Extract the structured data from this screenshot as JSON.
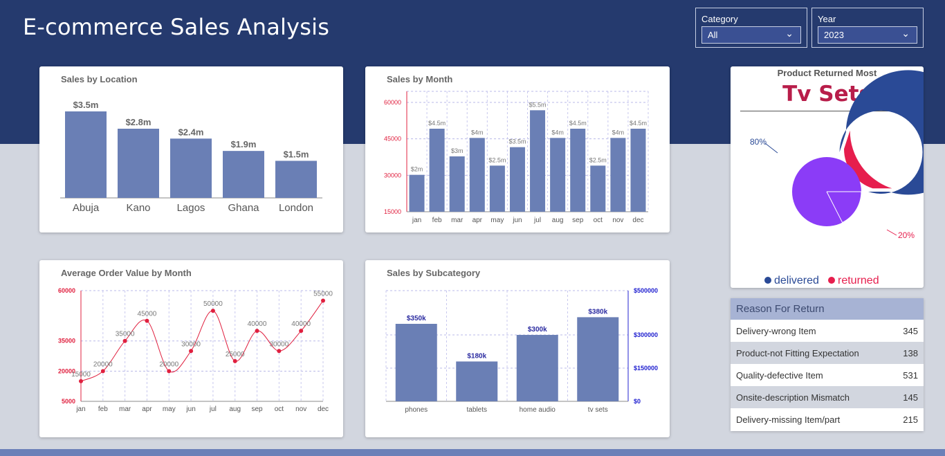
{
  "header": {
    "title": "E-commerce Sales Analysis"
  },
  "filters": [
    {
      "label": "Category",
      "value": "All"
    },
    {
      "label": "Year",
      "value": "2023"
    }
  ],
  "cards": {
    "location_title": "Sales by Location",
    "month_title": "Sales by Month",
    "aov_title": "Average Order Value by Month",
    "subcat_title": "Sales by Subcategory",
    "returned_title": "Product Returned Most",
    "returned_product": "Tv Sets",
    "reason_title": "Reason For Return"
  },
  "reasons": [
    {
      "reason": "Delivery-wrong Item",
      "count": "345"
    },
    {
      "reason": "Product-not Fitting Expectation",
      "count": "138"
    },
    {
      "reason": "Quality-defective Item",
      "count": "531"
    },
    {
      "reason": "Onsite-description Mismatch",
      "count": "145"
    },
    {
      "reason": "Delivery-missing Item/part",
      "count": "215"
    }
  ],
  "colors": {
    "bar": "#6a7fb5",
    "line": "#e0203f",
    "header": "#253a6e",
    "delivered": "#2a4a96",
    "returned": "#e61e4d",
    "inner": "#8b3cf7"
  },
  "chart_data": [
    {
      "type": "bar",
      "title": "Sales by Location",
      "categories": [
        "Abuja",
        "Kano",
        "Lagos",
        "Ghana",
        "London"
      ],
      "values": [
        3.5,
        2.8,
        2.4,
        1.9,
        1.5
      ],
      "labels": [
        "$3.5m",
        "$2.8m",
        "$2.4m",
        "$1.9m",
        "$1.5m"
      ],
      "ylim": [
        0,
        3.5
      ]
    },
    {
      "type": "bar",
      "title": "Sales by Month",
      "categories": [
        "jan",
        "feb",
        "mar",
        "apr",
        "may",
        "jun",
        "jul",
        "aug",
        "sep",
        "oct",
        "nov",
        "dec"
      ],
      "values": [
        2,
        4.5,
        3,
        4,
        2.5,
        3.5,
        5.5,
        4,
        4.5,
        2.5,
        4,
        4.5
      ],
      "labels": [
        "$2m",
        "$4.5m",
        "$3m",
        "$4m",
        "$2.5m",
        "$3.5m",
        "$5.5m",
        "$4m",
        "$4.5m",
        "$2.5m",
        "$4m",
        "$4.5m"
      ],
      "yticks": [
        "15000",
        "30000",
        "45000",
        "60000"
      ],
      "ylim": [
        15000,
        60000
      ],
      "grid": true
    },
    {
      "type": "line",
      "title": "Average Order Value by Month",
      "categories": [
        "jan",
        "feb",
        "mar",
        "apr",
        "may",
        "jun",
        "jul",
        "aug",
        "sep",
        "oct",
        "nov",
        "dec"
      ],
      "values": [
        15000,
        20000,
        35000,
        45000,
        20000,
        30000,
        50000,
        25000,
        40000,
        30000,
        40000,
        55000
      ],
      "yticks": [
        "5000",
        "20000",
        "35000",
        "60000"
      ],
      "ylim": [
        5000,
        60000
      ],
      "grid": true
    },
    {
      "type": "bar",
      "title": "Sales by Subcategory",
      "categories": [
        "phones",
        "tablets",
        "home audio",
        "tv sets"
      ],
      "values": [
        350000,
        180000,
        300000,
        380000
      ],
      "labels": [
        "$350k",
        "$180k",
        "$300k",
        "$380k"
      ],
      "yticks": [
        "$0",
        "$150000",
        "$300000",
        "$500000"
      ],
      "ylim": [
        0,
        500000
      ],
      "grid": true
    },
    {
      "type": "pie",
      "title": "Product Returned Most",
      "series": [
        {
          "name": "delivered",
          "value": 80,
          "label": "80%"
        },
        {
          "name": "returned",
          "value": 20,
          "label": "20%"
        }
      ],
      "legend": "bottom"
    }
  ]
}
